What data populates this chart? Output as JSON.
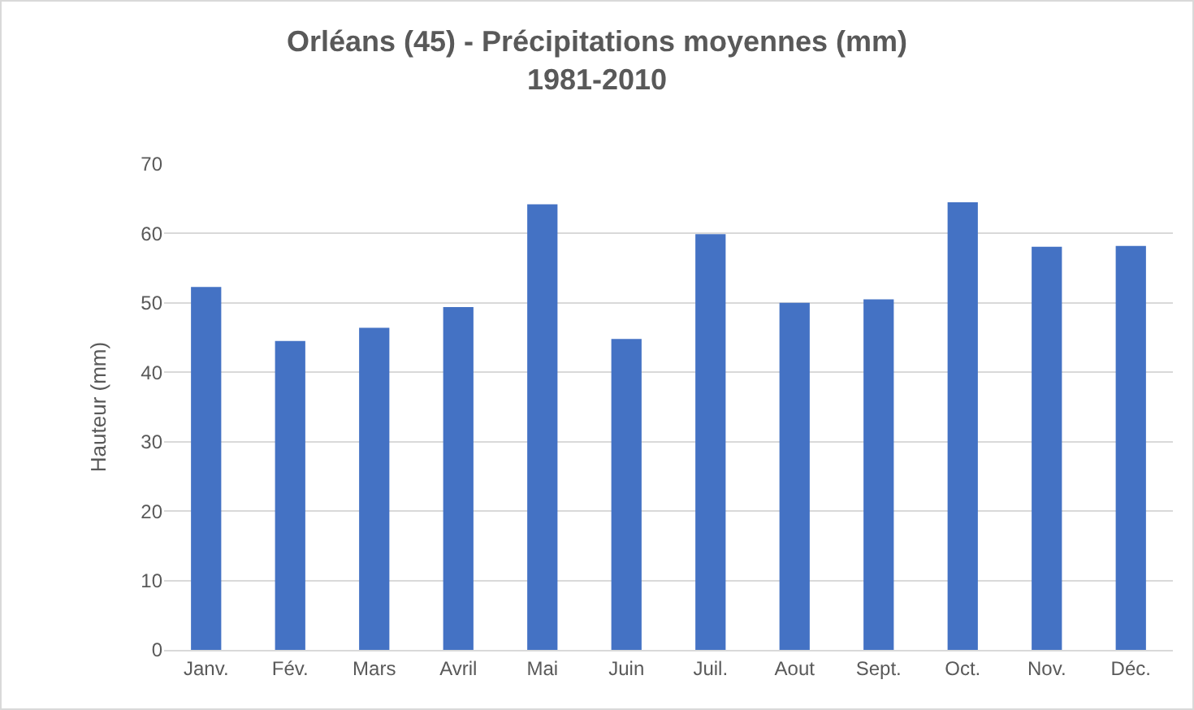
{
  "chart_data": {
    "type": "bar",
    "title": "Orléans (45) - Précipitations moyennes (mm)\n1981-2010",
    "ylabel": "Hauteur (mm)",
    "categories": [
      "Janv.",
      "Fév.",
      "Mars",
      "Avril",
      "Mai",
      "Juin",
      "Juil.",
      "Aout",
      "Sept.",
      "Oct.",
      "Nov.",
      "Déc."
    ],
    "values": [
      52.3,
      44.5,
      46.4,
      49.4,
      64.2,
      44.8,
      59.9,
      50.0,
      50.5,
      64.5,
      58.1,
      58.2
    ],
    "color": "#4472c4",
    "ylim": [
      0,
      70
    ],
    "yticks": [
      0,
      10,
      20,
      30,
      40,
      50,
      60,
      70
    ],
    "grid": "y"
  }
}
